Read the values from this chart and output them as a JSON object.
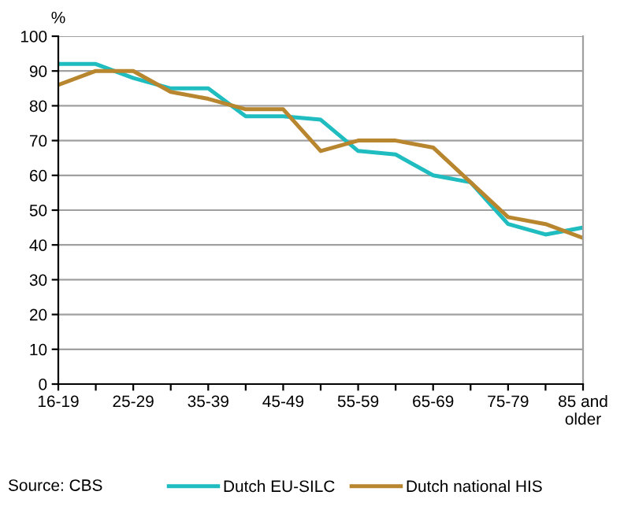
{
  "chart_data": {
    "type": "line",
    "ylabel": "%",
    "categories": [
      "16-19",
      null,
      "25-29",
      null,
      "35-39",
      null,
      "45-49",
      null,
      "55-59",
      null,
      "65-69",
      null,
      "75-79",
      null,
      "85 and\nolder"
    ],
    "series": [
      {
        "name": "Dutch EU-SILC",
        "color": "#1fbcc0",
        "values": [
          92,
          92,
          88,
          85,
          85,
          77,
          77,
          76,
          67,
          66,
          60,
          58,
          46,
          43,
          45
        ]
      },
      {
        "name": "Dutch national HIS",
        "color": "#b8862f",
        "values": [
          86,
          90,
          90,
          84,
          82,
          79,
          79,
          67,
          70,
          70,
          68,
          58,
          48,
          46,
          42
        ]
      }
    ],
    "ylim": [
      0,
      100
    ],
    "yticks": [
      0,
      10,
      20,
      30,
      40,
      50,
      60,
      70,
      80,
      90,
      100
    ],
    "grid": "y",
    "legend": "bottom",
    "marker": "none",
    "annotations": [
      "Source: CBS"
    ]
  }
}
